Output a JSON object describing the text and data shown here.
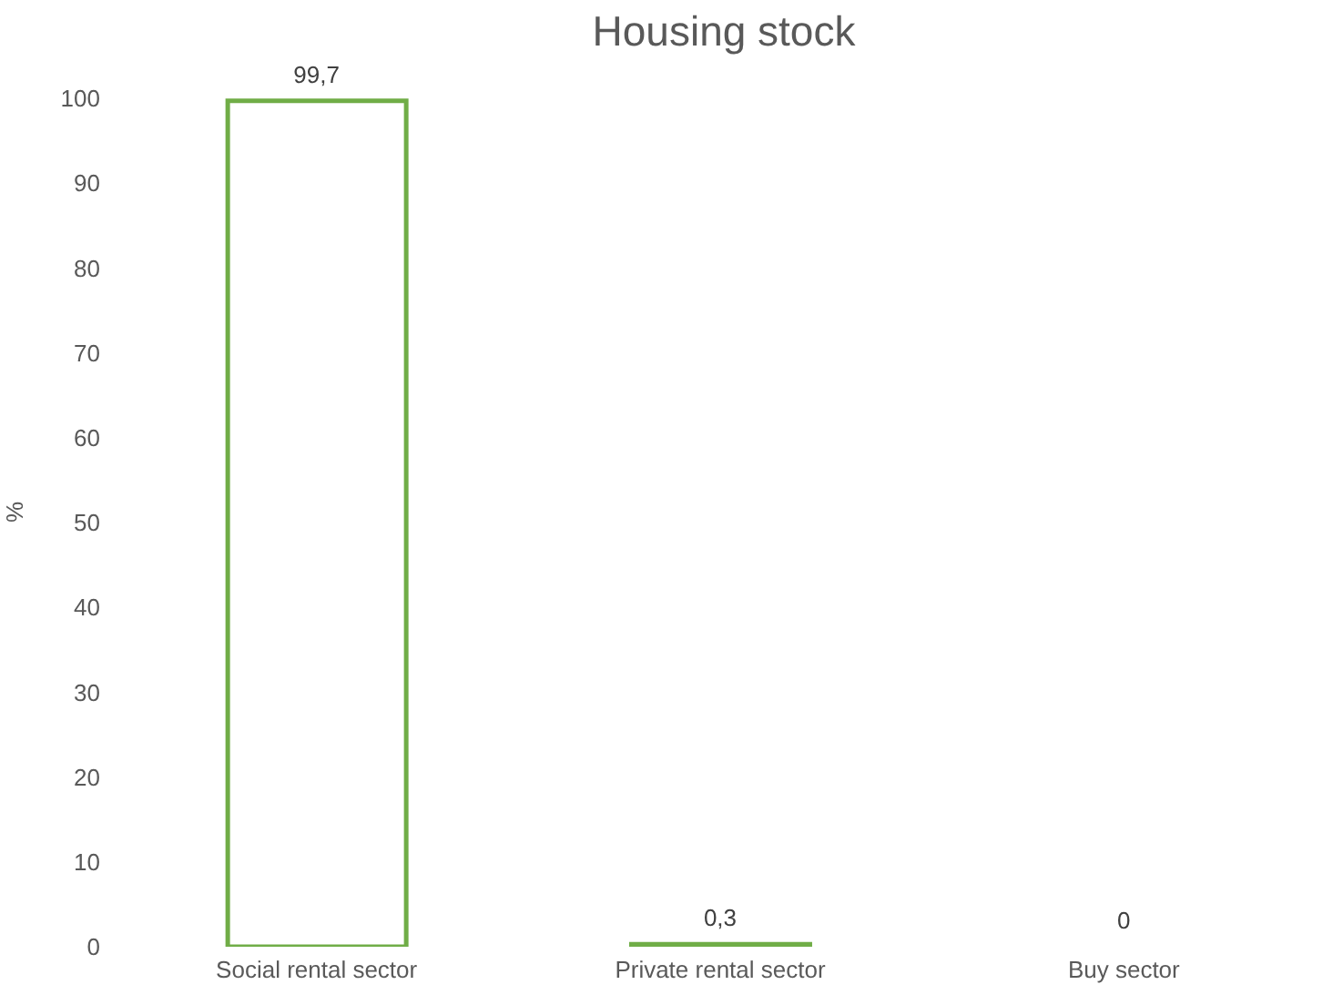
{
  "chart_data": {
    "type": "bar",
    "title": "Housing stock",
    "ylabel": "%",
    "categories": [
      "Social rental sector",
      "Private rental sector",
      "Buy sector"
    ],
    "values": [
      99.7,
      0.3,
      0
    ],
    "value_labels": [
      "99,7",
      "0,3",
      "0"
    ],
    "color": "#70ad47",
    "ylim": [
      0,
      100
    ],
    "yticks": [
      0,
      10,
      20,
      30,
      40,
      50,
      60,
      70,
      80,
      90,
      100
    ],
    "grid": false,
    "legend": false
  }
}
